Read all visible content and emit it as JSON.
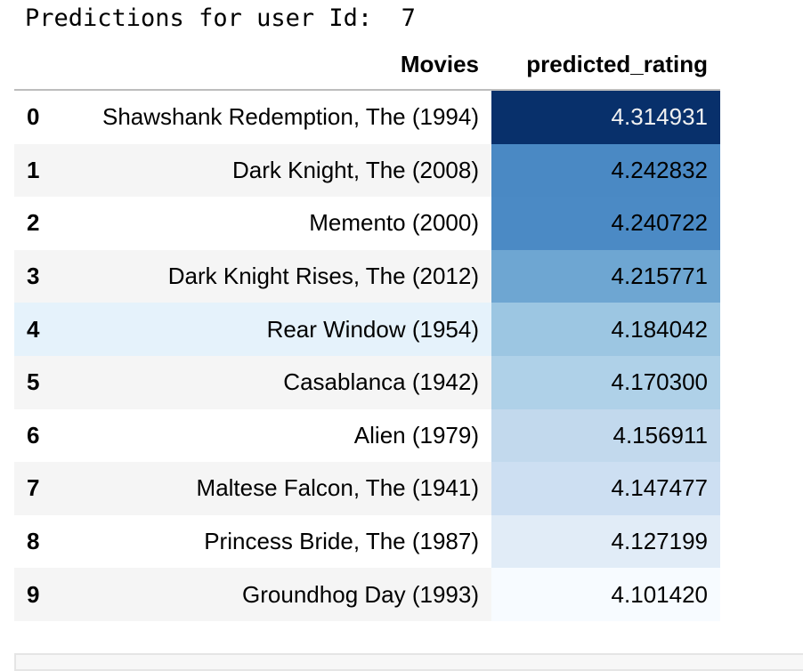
{
  "output_line": "Predictions for user Id:  7",
  "table": {
    "columns": [
      "Movies",
      "predicted_rating"
    ],
    "rows": [
      {
        "index": "0",
        "movie": "Shawshank Redemption, The (1994)",
        "rating": "4.314931",
        "bg": "#08306b",
        "fg": "#f1f1f1"
      },
      {
        "index": "1",
        "movie": "Dark Knight, The (2008)",
        "rating": "4.242832",
        "bg": "#4a89c4",
        "fg": "#000000"
      },
      {
        "index": "2",
        "movie": "Memento (2000)",
        "rating": "4.240722",
        "bg": "#4b8ac5",
        "fg": "#000000"
      },
      {
        "index": "3",
        "movie": "Dark Knight Rises, The (2012)",
        "rating": "4.215771",
        "bg": "#6ea6d2",
        "fg": "#000000"
      },
      {
        "index": "4",
        "movie": "Rear Window (1954)",
        "rating": "4.184042",
        "bg": "#9cc6e2",
        "fg": "#000000"
      },
      {
        "index": "5",
        "movie": "Casablanca (1942)",
        "rating": "4.170300",
        "bg": "#afd1e8",
        "fg": "#000000"
      },
      {
        "index": "6",
        "movie": "Alien (1979)",
        "rating": "4.156911",
        "bg": "#c2d9ed",
        "fg": "#000000"
      },
      {
        "index": "7",
        "movie": "Maltese Falcon, The (1941)",
        "rating": "4.147477",
        "bg": "#cddff2",
        "fg": "#000000"
      },
      {
        "index": "8",
        "movie": "Princess Bride, The (1987)",
        "rating": "4.127199",
        "bg": "#e1ecf7",
        "fg": "#000000"
      },
      {
        "index": "9",
        "movie": "Groundhog Day (1993)",
        "rating": "4.101420",
        "bg": "#f7fbff",
        "fg": "#000000"
      }
    ]
  }
}
